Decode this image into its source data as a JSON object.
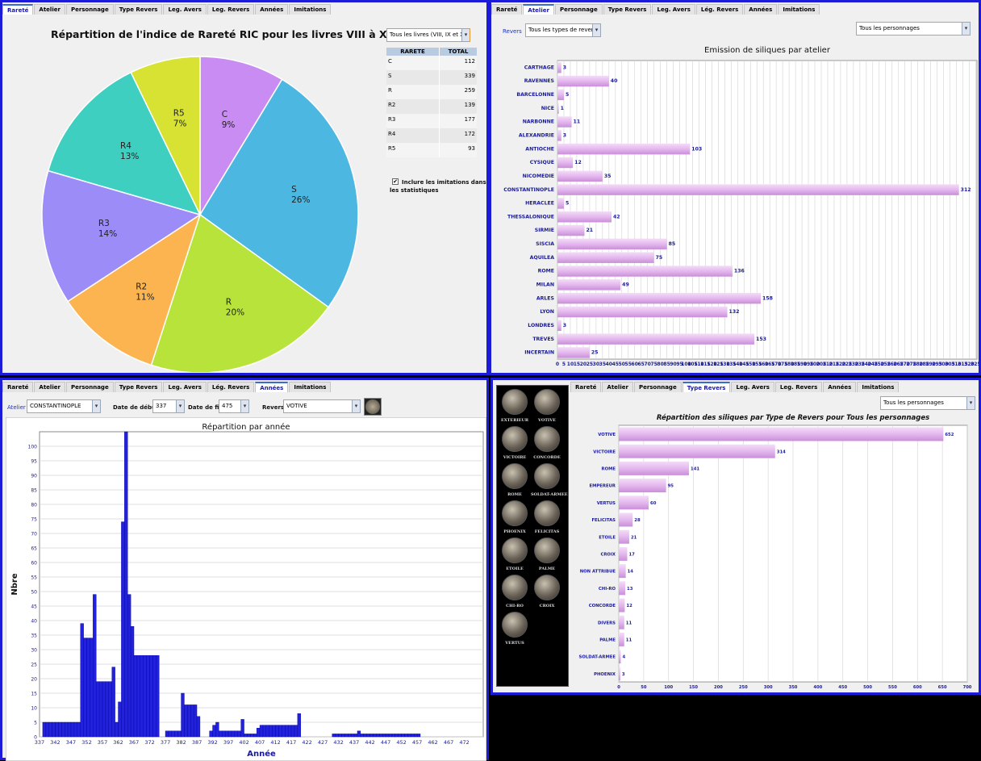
{
  "colors": {
    "border": "#1b1bd8",
    "pink": "#e6bcef",
    "blue": "#2020e0",
    "navy": "#1a1a99"
  },
  "p1": {
    "tabs": [
      "Rareté",
      "Atelier",
      "Personnage",
      "Type Revers",
      "Leg. Avers",
      "Leg. Revers",
      "Années",
      "Imitations"
    ],
    "active_tab": 0,
    "title": "Répartition de l'indice de Rareté RIC pour les livres VIII à X",
    "book_select": "Tous les livres (VIII, IX et X",
    "table_headers": [
      "RARETE",
      "TOTAL"
    ],
    "table_rows": [
      [
        "C",
        "112"
      ],
      [
        "S",
        "339"
      ],
      [
        "R",
        "259"
      ],
      [
        "R2",
        "139"
      ],
      [
        "R3",
        "177"
      ],
      [
        "R4",
        "172"
      ],
      [
        "R5",
        "93"
      ]
    ],
    "checkbox_label": "Inclure les imitations dans les statistiques"
  },
  "p2": {
    "tabs": [
      "Rareté",
      "Atelier",
      "Personnage",
      "Type Revers",
      "Leg. Avers",
      "Lég. Revers",
      "Années",
      "Imitations"
    ],
    "active_tab": 1,
    "revers_label": "Revers",
    "types_select": "Tous les types de revers",
    "persons_select": "Tous les personnages"
  },
  "p3": {
    "tabs": [
      "Rareté",
      "Atelier",
      "Personnage",
      "Type Revers",
      "Leg. Avers",
      "Lég. Revers",
      "Années",
      "Imitations"
    ],
    "active_tab": 6,
    "atelier_label": "Atelier",
    "atelier_value": "CONSTANTINOPLE",
    "start_label": "Date de début",
    "start_value": "337",
    "end_label": "Date de fin",
    "end_value": "475",
    "revers_label": "Revers",
    "revers_value": "VOTIVE"
  },
  "p4": {
    "tabs": [
      "Rareté",
      "Atelier",
      "Personnage",
      "Type Revers",
      "Leg. Avers",
      "Leg. Revers",
      "Années",
      "Imitations"
    ],
    "active_tab": 3,
    "persons_select": "Tous les personnages",
    "coins": [
      "EXTERIEUR",
      "VOTIVE",
      "VICTOIRE",
      "CONCORDE",
      "ROME",
      "SOLDAT-ARMEE",
      "PHOENIX",
      "FELICITAS",
      "ETOILE",
      "PALME",
      "CHI-RO",
      "CROIX",
      "VERTUS"
    ]
  },
  "chart_data": [
    {
      "type": "pie",
      "title": "Répartition de l'indice de Rareté RIC pour les livres VIII à X",
      "categories": [
        "C",
        "S",
        "R",
        "R2",
        "R3",
        "R4",
        "R5"
      ],
      "values": [
        112,
        339,
        259,
        139,
        177,
        172,
        93
      ],
      "percent_labels": [
        "9%",
        "26%",
        "20%",
        "11%",
        "14%",
        "13%",
        "7%"
      ],
      "colors": [
        "#c88cf2",
        "#4cb8e2",
        "#b7e33a",
        "#fbb44f",
        "#9b8cf8",
        "#3fcfc0",
        "#d7e233"
      ]
    },
    {
      "type": "bar",
      "orientation": "horizontal",
      "title": "Emission de siliques par atelier",
      "categories": [
        "CARTHAGE",
        "RAVENNES",
        "BARCELONNE",
        "NICE",
        "NARBONNE",
        "ALEXANDRIE",
        "ANTIOCHE",
        "CYSIQUE",
        "NICOMEDIE",
        "CONSTANTINOPLE",
        "HERACLEE",
        "THESSALONIQUE",
        "SIRMIE",
        "SISCIA",
        "AQUILEA",
        "ROME",
        "MILAN",
        "ARLES",
        "LYON",
        "LONDRES",
        "TREVES",
        "INCERTAIN"
      ],
      "values": [
        3,
        40,
        5,
        1,
        11,
        3,
        103,
        12,
        35,
        312,
        5,
        42,
        21,
        85,
        75,
        136,
        49,
        158,
        132,
        3,
        153,
        25
      ],
      "ticks": [
        0,
        5,
        10,
        15,
        20,
        25,
        30,
        35,
        40,
        45,
        50,
        55,
        60,
        65,
        70,
        75,
        80,
        85,
        90,
        95,
        100,
        105,
        110,
        115,
        120,
        125,
        130,
        135,
        140,
        145,
        150,
        155,
        160,
        165,
        170,
        175,
        180,
        185,
        190,
        195,
        200,
        205,
        210,
        215,
        220,
        225,
        230,
        235,
        240,
        245,
        250,
        255,
        260,
        265,
        270,
        275,
        280,
        285,
        290,
        295,
        300,
        305,
        310,
        315,
        320,
        325
      ],
      "xlim": [
        0,
        326
      ]
    },
    {
      "type": "bar",
      "title": "Répartition par année",
      "xlabel": "Année",
      "ylabel": "Nbre",
      "ylim": [
        0,
        105
      ],
      "yticks": [
        0,
        5,
        10,
        15,
        20,
        25,
        30,
        35,
        40,
        45,
        50,
        55,
        60,
        65,
        70,
        75,
        80,
        85,
        90,
        95,
        100
      ],
      "xticks": [
        337,
        342,
        347,
        352,
        357,
        362,
        367,
        372,
        377,
        382,
        387,
        392,
        397,
        402,
        407,
        412,
        417,
        422,
        427,
        432,
        437,
        442,
        447,
        452,
        457,
        462,
        467,
        472
      ],
      "x_start": 337,
      "values": [
        0,
        5,
        5,
        5,
        5,
        5,
        5,
        5,
        5,
        5,
        5,
        5,
        5,
        39,
        34,
        34,
        34,
        49,
        19,
        19,
        19,
        19,
        19,
        24,
        5,
        12,
        74,
        105,
        49,
        38,
        28,
        28,
        28,
        28,
        28,
        28,
        28,
        28,
        0,
        0,
        2,
        2,
        2,
        2,
        2,
        15,
        11,
        11,
        11,
        11,
        7,
        0,
        0,
        0,
        2,
        4,
        5,
        2,
        2,
        2,
        2,
        2,
        2,
        2,
        6,
        1,
        1,
        1,
        1,
        3,
        4,
        4,
        4,
        4,
        4,
        4,
        4,
        4,
        4,
        4,
        4,
        4,
        8,
        0,
        0,
        0,
        0,
        0,
        0,
        0,
        0,
        0,
        0,
        1,
        1,
        1,
        1,
        1,
        1,
        1,
        1,
        2,
        1,
        1,
        1,
        1,
        1,
        1,
        1,
        1,
        1,
        1,
        1,
        1,
        1,
        1,
        1,
        1,
        1,
        1,
        1,
        0,
        0,
        0,
        0,
        0,
        0,
        0,
        0,
        0,
        0,
        0,
        0,
        0,
        0,
        0,
        0,
        0,
        0,
        0,
        0
      ]
    },
    {
      "type": "bar",
      "orientation": "horizontal",
      "title": "Répartition des siliques par Type de Revers pour Tous les personnages",
      "categories": [
        "VOTIVE",
        "VICTOIRE",
        "ROME",
        "EMPEREUR",
        "VERTUS",
        "FELICITAS",
        "ETOILE",
        "CROIX",
        "NON ATTRIBUE",
        "CHI-RO",
        "CONCORDE",
        "DIVERS",
        "PALME",
        "SOLDAT-ARMEE",
        "PHOENIX"
      ],
      "values": [
        652,
        314,
        141,
        95,
        60,
        28,
        21,
        17,
        14,
        13,
        12,
        11,
        11,
        4,
        3
      ],
      "ticks": [
        0,
        50,
        100,
        150,
        200,
        250,
        300,
        350,
        400,
        450,
        500,
        550,
        600,
        650,
        700
      ],
      "xlim": [
        0,
        700
      ]
    }
  ]
}
